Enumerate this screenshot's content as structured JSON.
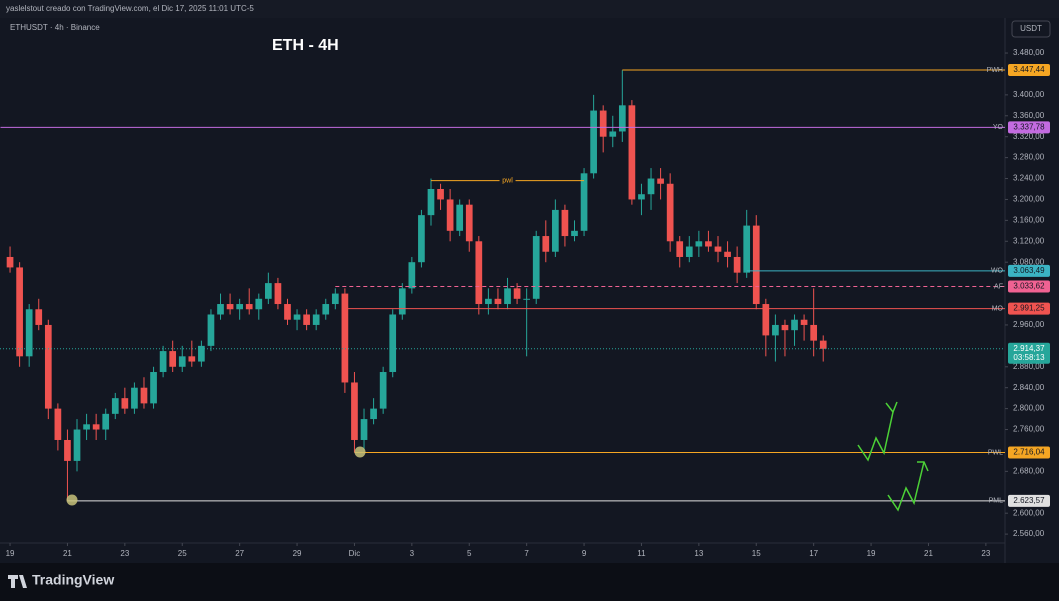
{
  "chart_data": {
    "type": "candlestick",
    "header": "yaslelstout creado con TradingView.com, el Dic 17, 2025 11:01 UTC-5",
    "symbol": "ETHUSDT · 4h · Binance",
    "title": "ETH - 4H",
    "currency": "USDT",
    "brand": "TradingView",
    "up_color": "#26a69a",
    "down_color": "#ef5350",
    "ylim": [
      2543,
      3547
    ],
    "xlim": [
      -1.05,
      104
    ],
    "yticks": [
      {
        "value": 3480,
        "label": "3.480,00"
      },
      {
        "value": 3400,
        "label": "3.400,00"
      },
      {
        "value": 3360,
        "label": "3.360,00"
      },
      {
        "value": 3320,
        "label": "3.320,00"
      },
      {
        "value": 3280,
        "label": "3.280,00"
      },
      {
        "value": 3240,
        "label": "3.240,00"
      },
      {
        "value": 3200,
        "label": "3.200,00"
      },
      {
        "value": 3160,
        "label": "3.160,00"
      },
      {
        "value": 3120,
        "label": "3.120,00"
      },
      {
        "value": 3080,
        "label": "3.080,00"
      },
      {
        "value": 2960,
        "label": "2.960,00"
      },
      {
        "value": 2880,
        "label": "2.880,00"
      },
      {
        "value": 2840,
        "label": "2.840,00"
      },
      {
        "value": 2800,
        "label": "2.800,00"
      },
      {
        "value": 2760,
        "label": "2.760,00"
      },
      {
        "value": 2680,
        "label": "2.680,00"
      },
      {
        "value": 2600,
        "label": "2.600,00"
      },
      {
        "value": 2560,
        "label": "2.560,00"
      }
    ],
    "xticks": [
      {
        "value": 0,
        "label": "19"
      },
      {
        "value": 6,
        "label": "21"
      },
      {
        "value": 12,
        "label": "23"
      },
      {
        "value": 18,
        "label": "25"
      },
      {
        "value": 24,
        "label": "27"
      },
      {
        "value": 30,
        "label": "29"
      },
      {
        "value": 36,
        "label": "Dic"
      },
      {
        "value": 42,
        "label": "3"
      },
      {
        "value": 48,
        "label": "5"
      },
      {
        "value": 54,
        "label": "7"
      },
      {
        "value": 60,
        "label": "9"
      },
      {
        "value": 66,
        "label": "11"
      },
      {
        "value": 72,
        "label": "13"
      },
      {
        "value": 78,
        "label": "15"
      },
      {
        "value": 84,
        "label": "17"
      },
      {
        "value": 90,
        "label": "19"
      },
      {
        "value": 96,
        "label": "21"
      },
      {
        "value": 102,
        "label": "23"
      }
    ],
    "candles": [
      [
        3090,
        3110,
        3060,
        3070
      ],
      [
        3070,
        3080,
        2880,
        2900
      ],
      [
        2900,
        3000,
        2880,
        2990
      ],
      [
        2990,
        3010,
        2950,
        2960
      ],
      [
        2960,
        2970,
        2780,
        2800
      ],
      [
        2800,
        2810,
        2720,
        2740
      ],
      [
        2740,
        2760,
        2623,
        2700
      ],
      [
        2700,
        2780,
        2680,
        2760
      ],
      [
        2760,
        2790,
        2740,
        2770
      ],
      [
        2770,
        2790,
        2740,
        2760
      ],
      [
        2760,
        2800,
        2740,
        2790
      ],
      [
        2790,
        2830,
        2780,
        2820
      ],
      [
        2820,
        2840,
        2790,
        2800
      ],
      [
        2800,
        2850,
        2790,
        2840
      ],
      [
        2840,
        2860,
        2800,
        2810
      ],
      [
        2810,
        2880,
        2800,
        2870
      ],
      [
        2870,
        2920,
        2860,
        2910
      ],
      [
        2910,
        2930,
        2870,
        2880
      ],
      [
        2880,
        2920,
        2870,
        2900
      ],
      [
        2900,
        2930,
        2880,
        2890
      ],
      [
        2890,
        2930,
        2880,
        2920
      ],
      [
        2920,
        2990,
        2910,
        2980
      ],
      [
        2980,
        3020,
        2970,
        3000
      ],
      [
        3000,
        3020,
        2980,
        2990
      ],
      [
        2990,
        3010,
        2970,
        3000
      ],
      [
        3000,
        3030,
        2980,
        2990
      ],
      [
        2990,
        3020,
        2970,
        3010
      ],
      [
        3010,
        3060,
        3000,
        3040
      ],
      [
        3040,
        3050,
        2990,
        3000
      ],
      [
        3000,
        3010,
        2960,
        2970
      ],
      [
        2970,
        2990,
        2950,
        2980
      ],
      [
        2980,
        2990,
        2950,
        2960
      ],
      [
        2960,
        2990,
        2950,
        2980
      ],
      [
        2980,
        3010,
        2970,
        3000
      ],
      [
        3000,
        3030,
        2990,
        3020
      ],
      [
        3020,
        3030,
        2830,
        2850
      ],
      [
        2850,
        2870,
        2716,
        2740
      ],
      [
        2740,
        2800,
        2720,
        2780
      ],
      [
        2780,
        2820,
        2770,
        2800
      ],
      [
        2800,
        2880,
        2790,
        2870
      ],
      [
        2870,
        2990,
        2860,
        2980
      ],
      [
        2980,
        3040,
        2970,
        3030
      ],
      [
        3030,
        3090,
        3020,
        3080
      ],
      [
        3080,
        3180,
        3070,
        3170
      ],
      [
        3170,
        3240,
        3150,
        3220
      ],
      [
        3220,
        3230,
        3180,
        3200
      ],
      [
        3200,
        3220,
        3120,
        3140
      ],
      [
        3140,
        3200,
        3130,
        3190
      ],
      [
        3190,
        3200,
        3100,
        3120
      ],
      [
        3120,
        3130,
        2980,
        3000
      ],
      [
        3000,
        3030,
        2980,
        3010
      ],
      [
        3010,
        3030,
        2990,
        3000
      ],
      [
        3000,
        3050,
        2990,
        3030
      ],
      [
        3030,
        3040,
        3000,
        3010
      ],
      [
        3010,
        3030,
        2900,
        3010
      ],
      [
        3010,
        3140,
        3000,
        3130
      ],
      [
        3130,
        3160,
        3080,
        3100
      ],
      [
        3100,
        3200,
        3090,
        3180
      ],
      [
        3180,
        3190,
        3110,
        3130
      ],
      [
        3130,
        3160,
        3120,
        3140
      ],
      [
        3140,
        3260,
        3130,
        3250
      ],
      [
        3250,
        3400,
        3240,
        3370
      ],
      [
        3370,
        3380,
        3290,
        3320
      ],
      [
        3320,
        3360,
        3300,
        3330
      ],
      [
        3330,
        3447,
        3310,
        3380
      ],
      [
        3380,
        3390,
        3190,
        3200
      ],
      [
        3200,
        3230,
        3170,
        3210
      ],
      [
        3210,
        3260,
        3180,
        3240
      ],
      [
        3240,
        3260,
        3200,
        3230
      ],
      [
        3230,
        3250,
        3100,
        3120
      ],
      [
        3120,
        3130,
        3070,
        3090
      ],
      [
        3090,
        3130,
        3080,
        3110
      ],
      [
        3110,
        3140,
        3090,
        3120
      ],
      [
        3120,
        3140,
        3100,
        3110
      ],
      [
        3110,
        3130,
        3080,
        3100
      ],
      [
        3100,
        3120,
        3070,
        3090
      ],
      [
        3090,
        3110,
        3040,
        3060
      ],
      [
        3060,
        3180,
        3050,
        3150
      ],
      [
        3150,
        3170,
        2990,
        3000
      ],
      [
        3000,
        3010,
        2900,
        2940
      ],
      [
        2940,
        2980,
        2890,
        2960
      ],
      [
        2960,
        2970,
        2900,
        2950
      ],
      [
        2950,
        2980,
        2920,
        2970
      ],
      [
        2970,
        2980,
        2930,
        2960
      ],
      [
        2960,
        3030,
        2900,
        2930
      ],
      [
        2930,
        2940,
        2890,
        2914.37
      ]
    ],
    "levels": [
      {
        "name": "PWH",
        "value": 3447.44,
        "value_label": "3.447,44",
        "color": "#f5a623",
        "start": 64
      },
      {
        "name": "YO",
        "value": 3337.78,
        "value_label": "3.337,78",
        "color": "#c36be0",
        "start": -1
      },
      {
        "name": "WO",
        "value": 3063.49,
        "value_label": "3.063,49",
        "color": "#3bb3c3",
        "start": 77
      },
      {
        "name": "AF",
        "value": 3033.62,
        "value_label": "3.033,62",
        "color": "#f06292",
        "start": 34,
        "dashed": true
      },
      {
        "name": "MO",
        "value": 2991.25,
        "value_label": "2.991,25",
        "color": "#ef5350",
        "start": 35
      },
      {
        "name": "PWL",
        "value": 2716.04,
        "value_label": "2.716,04",
        "color": "#f5a623",
        "start": 36
      },
      {
        "name": "PML",
        "value": 2623.57,
        "value_label": "2.623,57",
        "color": "#e0e0e0",
        "start": 6
      }
    ],
    "last_price": {
      "value": 2914.37,
      "value_label": "2.914,37",
      "countdown": "03:58:13",
      "color": "#26a69a"
    },
    "annotation": {
      "text": "pwl",
      "value": 3236,
      "start": 44,
      "end": 60,
      "color": "#f5a623"
    }
  }
}
